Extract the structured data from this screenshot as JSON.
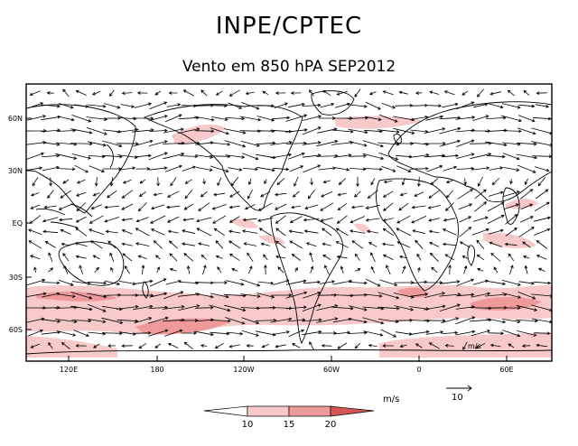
{
  "title": "INPE/CPTEC",
  "subtitle": "Vento em 850 hPA SEP2012",
  "lat_labels": [
    "60N",
    "30N",
    "EQ",
    "30S",
    "60S"
  ],
  "lon_labels": [
    "120E",
    "180",
    "120W",
    "60W",
    "0",
    "60E"
  ],
  "units_label": "m/s",
  "reference_vector": {
    "value": "10"
  },
  "colorbar": {
    "thresholds": [
      "10",
      "15",
      "20"
    ],
    "colors": [
      "#ffffff",
      "#f7c9c9",
      "#ee9a9a",
      "#d55555"
    ]
  },
  "map_inset_label": "m/s",
  "colors": {
    "line": "#000000",
    "shade_light": "#f7c9c9",
    "shade_mid": "#ee9a9a"
  }
}
